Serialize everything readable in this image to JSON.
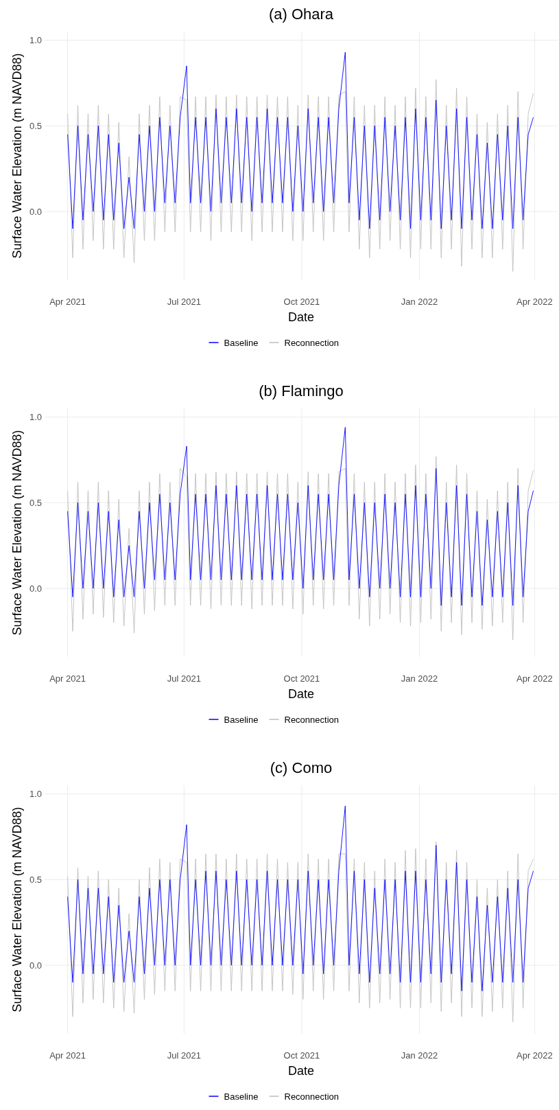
{
  "chart_data": [
    {
      "type": "line",
      "title": "(a) Ohara",
      "xlabel": "Date",
      "ylabel": "Surface Water Elevation (m NAVD88)",
      "legend": "bottom",
      "grid": true,
      "xlim": [
        "2021-03-14",
        "2022-04-19"
      ],
      "ylim": [
        -0.4,
        1.05
      ],
      "xticks": [
        {
          "value": "2021-04-01",
          "label": "Apr 2021"
        },
        {
          "value": "2021-07-01",
          "label": "Jul 2021"
        },
        {
          "value": "2021-10-01",
          "label": "Oct 2021"
        },
        {
          "value": "2022-01-01",
          "label": "Jan 2022"
        },
        {
          "value": "2022-04-01",
          "label": "Apr 2022"
        }
      ],
      "yticks": [
        {
          "value": 0,
          "label": "0.0"
        },
        {
          "value": 0.5,
          "label": "0.5"
        },
        {
          "value": 1,
          "label": "1.0"
        }
      ],
      "x": [
        "2021-04-01",
        "2021-04-05",
        "2021-04-09",
        "2021-04-13",
        "2021-04-17",
        "2021-04-21",
        "2021-04-25",
        "2021-04-29",
        "2021-05-03",
        "2021-05-07",
        "2021-05-11",
        "2021-05-15",
        "2021-05-19",
        "2021-05-23",
        "2021-05-27",
        "2021-05-31",
        "2021-06-04",
        "2021-06-08",
        "2021-06-12",
        "2021-06-16",
        "2021-06-20",
        "2021-06-24",
        "2021-06-28",
        "2021-07-03",
        "2021-07-06",
        "2021-07-10",
        "2021-07-14",
        "2021-07-18",
        "2021-07-22",
        "2021-07-26",
        "2021-07-30",
        "2021-08-03",
        "2021-08-07",
        "2021-08-11",
        "2021-08-15",
        "2021-08-19",
        "2021-08-23",
        "2021-08-27",
        "2021-08-31",
        "2021-09-04",
        "2021-09-08",
        "2021-09-12",
        "2021-09-16",
        "2021-09-20",
        "2021-09-24",
        "2021-09-28",
        "2021-10-02",
        "2021-10-06",
        "2021-10-10",
        "2021-10-14",
        "2021-10-18",
        "2021-10-22",
        "2021-10-26",
        "2021-10-30",
        "2021-11-04",
        "2021-11-07",
        "2021-11-11",
        "2021-11-15",
        "2021-11-19",
        "2021-11-23",
        "2021-11-27",
        "2021-12-01",
        "2021-12-05",
        "2021-12-09",
        "2021-12-13",
        "2021-12-17",
        "2021-12-21",
        "2021-12-25",
        "2021-12-29",
        "2022-01-02",
        "2022-01-06",
        "2022-01-10",
        "2022-01-14",
        "2022-01-18",
        "2022-01-22",
        "2022-01-26",
        "2022-01-30",
        "2022-02-03",
        "2022-02-07",
        "2022-02-11",
        "2022-02-15",
        "2022-02-19",
        "2022-02-23",
        "2022-02-27",
        "2022-03-03",
        "2022-03-07",
        "2022-03-11",
        "2022-03-15",
        "2022-03-19",
        "2022-03-23",
        "2022-03-27",
        "2022-03-31"
      ],
      "series": [
        {
          "name": "Baseline",
          "color": "#0000ff",
          "values": [
            0.45,
            -0.1,
            0.5,
            -0.05,
            0.45,
            0.0,
            0.5,
            -0.05,
            0.45,
            -0.05,
            0.4,
            -0.1,
            0.2,
            -0.1,
            0.45,
            0.0,
            0.5,
            0.0,
            0.55,
            0.05,
            0.5,
            0.05,
            0.55,
            0.85,
            0.05,
            0.55,
            0.05,
            0.55,
            0.0,
            0.6,
            0.05,
            0.55,
            0.05,
            0.6,
            0.05,
            0.55,
            0.0,
            0.55,
            0.05,
            0.6,
            0.05,
            0.55,
            0.05,
            0.55,
            0.0,
            0.5,
            0.0,
            0.6,
            0.05,
            0.55,
            0.0,
            0.55,
            0.05,
            0.6,
            0.93,
            0.05,
            0.55,
            -0.05,
            0.5,
            -0.1,
            0.5,
            -0.05,
            0.55,
            0.0,
            0.5,
            -0.05,
            0.55,
            -0.1,
            0.6,
            -0.05,
            0.55,
            -0.05,
            0.65,
            -0.1,
            0.5,
            -0.05,
            0.6,
            -0.1,
            0.55,
            -0.05,
            0.45,
            -0.1,
            0.4,
            -0.1,
            0.45,
            -0.05,
            0.5,
            -0.1,
            0.55,
            -0.05,
            0.45,
            0.55
          ]
        },
        {
          "name": "Reconnection",
          "color": "#bebebe",
          "values": [
            0.57,
            -0.27,
            0.62,
            -0.22,
            0.57,
            -0.17,
            0.62,
            -0.22,
            0.57,
            -0.22,
            0.52,
            -0.27,
            0.32,
            -0.3,
            0.57,
            -0.17,
            0.62,
            -0.17,
            0.67,
            -0.12,
            0.62,
            -0.12,
            0.67,
            0.65,
            -0.12,
            0.67,
            -0.12,
            0.67,
            -0.17,
            0.68,
            -0.12,
            0.67,
            -0.12,
            0.68,
            -0.12,
            0.67,
            -0.17,
            0.67,
            -0.12,
            0.68,
            -0.12,
            0.67,
            -0.12,
            0.67,
            -0.17,
            0.62,
            -0.17,
            0.68,
            -0.12,
            0.67,
            -0.17,
            0.67,
            -0.12,
            0.68,
            0.7,
            -0.12,
            0.67,
            -0.22,
            0.62,
            -0.27,
            0.62,
            -0.22,
            0.67,
            -0.17,
            0.62,
            -0.22,
            0.67,
            -0.27,
            0.72,
            -0.22,
            0.67,
            -0.22,
            0.77,
            -0.27,
            0.62,
            -0.22,
            0.72,
            -0.32,
            0.67,
            -0.22,
            0.57,
            -0.27,
            0.52,
            -0.27,
            0.57,
            -0.22,
            0.62,
            -0.35,
            0.7,
            -0.22,
            0.57,
            0.69
          ]
        }
      ]
    },
    {
      "type": "line",
      "title": "(b) Flamingo",
      "xlabel": "Date",
      "ylabel": "Surface Water Elevation (m NAVD88)",
      "legend": "bottom",
      "grid": true,
      "xlim": [
        "2021-03-14",
        "2022-04-19"
      ],
      "ylim": [
        -0.4,
        1.05
      ],
      "xticks": [
        {
          "value": "2021-04-01",
          "label": "Apr 2021"
        },
        {
          "value": "2021-07-01",
          "label": "Jul 2021"
        },
        {
          "value": "2021-10-01",
          "label": "Oct 2021"
        },
        {
          "value": "2022-01-01",
          "label": "Jan 2022"
        },
        {
          "value": "2022-04-01",
          "label": "Apr 2022"
        }
      ],
      "yticks": [
        {
          "value": 0,
          "label": "0.0"
        },
        {
          "value": 0.5,
          "label": "0.5"
        },
        {
          "value": 1,
          "label": "1.0"
        }
      ],
      "x": [
        "2021-04-01",
        "2021-04-05",
        "2021-04-09",
        "2021-04-13",
        "2021-04-17",
        "2021-04-21",
        "2021-04-25",
        "2021-04-29",
        "2021-05-03",
        "2021-05-07",
        "2021-05-11",
        "2021-05-15",
        "2021-05-19",
        "2021-05-23",
        "2021-05-27",
        "2021-05-31",
        "2021-06-04",
        "2021-06-08",
        "2021-06-12",
        "2021-06-16",
        "2021-06-20",
        "2021-06-24",
        "2021-06-28",
        "2021-07-03",
        "2021-07-06",
        "2021-07-10",
        "2021-07-14",
        "2021-07-18",
        "2021-07-22",
        "2021-07-26",
        "2021-07-30",
        "2021-08-03",
        "2021-08-07",
        "2021-08-11",
        "2021-08-15",
        "2021-08-19",
        "2021-08-23",
        "2021-08-27",
        "2021-08-31",
        "2021-09-04",
        "2021-09-08",
        "2021-09-12",
        "2021-09-16",
        "2021-09-20",
        "2021-09-24",
        "2021-09-28",
        "2021-10-02",
        "2021-10-06",
        "2021-10-10",
        "2021-10-14",
        "2021-10-18",
        "2021-10-22",
        "2021-10-26",
        "2021-10-30",
        "2021-11-04",
        "2021-11-07",
        "2021-11-11",
        "2021-11-15",
        "2021-11-19",
        "2021-11-23",
        "2021-11-27",
        "2021-12-01",
        "2021-12-05",
        "2021-12-09",
        "2021-12-13",
        "2021-12-17",
        "2021-12-21",
        "2021-12-25",
        "2021-12-29",
        "2022-01-02",
        "2022-01-06",
        "2022-01-10",
        "2022-01-14",
        "2022-01-18",
        "2022-01-22",
        "2022-01-26",
        "2022-01-30",
        "2022-02-03",
        "2022-02-07",
        "2022-02-11",
        "2022-02-15",
        "2022-02-19",
        "2022-02-23",
        "2022-02-27",
        "2022-03-03",
        "2022-03-07",
        "2022-03-11",
        "2022-03-15",
        "2022-03-19",
        "2022-03-23",
        "2022-03-27",
        "2022-03-31"
      ],
      "series": [
        {
          "name": "Baseline",
          "color": "#0000ff",
          "values": [
            0.45,
            -0.05,
            0.5,
            0.0,
            0.45,
            0.0,
            0.5,
            0.0,
            0.45,
            -0.05,
            0.4,
            -0.05,
            0.25,
            -0.05,
            0.45,
            0.0,
            0.5,
            0.05,
            0.55,
            0.05,
            0.5,
            0.05,
            0.55,
            0.83,
            0.05,
            0.55,
            0.05,
            0.55,
            0.05,
            0.6,
            0.05,
            0.55,
            0.05,
            0.6,
            0.05,
            0.55,
            0.05,
            0.55,
            0.05,
            0.6,
            0.05,
            0.55,
            0.05,
            0.55,
            0.05,
            0.5,
            0.0,
            0.6,
            0.05,
            0.55,
            0.05,
            0.55,
            0.05,
            0.6,
            0.94,
            0.05,
            0.55,
            0.0,
            0.5,
            -0.05,
            0.5,
            0.0,
            0.55,
            0.0,
            0.5,
            -0.05,
            0.55,
            -0.05,
            0.6,
            -0.05,
            0.55,
            0.0,
            0.7,
            -0.1,
            0.5,
            -0.05,
            0.6,
            -0.1,
            0.55,
            -0.05,
            0.45,
            -0.1,
            0.4,
            -0.05,
            0.45,
            -0.05,
            0.5,
            -0.1,
            0.6,
            -0.05,
            0.45,
            0.57
          ]
        },
        {
          "name": "Reconnection",
          "color": "#bebebe",
          "values": [
            0.57,
            -0.25,
            0.62,
            -0.18,
            0.57,
            -0.15,
            0.62,
            -0.17,
            0.57,
            -0.2,
            0.52,
            -0.22,
            0.35,
            -0.26,
            0.57,
            -0.15,
            0.62,
            -0.13,
            0.67,
            -0.1,
            0.62,
            -0.1,
            0.7,
            0.65,
            -0.1,
            0.67,
            -0.1,
            0.67,
            -0.12,
            0.68,
            -0.1,
            0.67,
            -0.1,
            0.68,
            -0.1,
            0.67,
            -0.12,
            0.67,
            -0.1,
            0.68,
            -0.1,
            0.67,
            -0.1,
            0.67,
            -0.12,
            0.62,
            -0.15,
            0.68,
            -0.1,
            0.67,
            -0.12,
            0.67,
            -0.1,
            0.68,
            0.7,
            -0.1,
            0.67,
            -0.18,
            0.62,
            -0.22,
            0.62,
            -0.18,
            0.67,
            -0.15,
            0.62,
            -0.2,
            0.67,
            -0.22,
            0.72,
            -0.2,
            0.67,
            -0.18,
            0.77,
            -0.25,
            0.62,
            -0.2,
            0.72,
            -0.27,
            0.67,
            -0.2,
            0.57,
            -0.24,
            0.52,
            -0.22,
            0.57,
            -0.2,
            0.62,
            -0.3,
            0.7,
            -0.2,
            0.57,
            0.69
          ]
        }
      ]
    },
    {
      "type": "line",
      "title": "(c) Como",
      "xlabel": "Date",
      "ylabel": "Surface Water Elevation (m NAVD88)",
      "legend": "bottom",
      "grid": true,
      "xlim": [
        "2021-03-14",
        "2022-04-19"
      ],
      "ylim": [
        -0.4,
        1.05
      ],
      "xticks": [
        {
          "value": "2021-04-01",
          "label": "Apr 2021"
        },
        {
          "value": "2021-07-01",
          "label": "Jul 2021"
        },
        {
          "value": "2021-10-01",
          "label": "Oct 2021"
        },
        {
          "value": "2022-01-01",
          "label": "Jan 2022"
        },
        {
          "value": "2022-04-01",
          "label": "Apr 2022"
        }
      ],
      "yticks": [
        {
          "value": 0,
          "label": "0.0"
        },
        {
          "value": 0.5,
          "label": "0.5"
        },
        {
          "value": 1,
          "label": "1.0"
        }
      ],
      "x": [
        "2021-04-01",
        "2021-04-05",
        "2021-04-09",
        "2021-04-13",
        "2021-04-17",
        "2021-04-21",
        "2021-04-25",
        "2021-04-29",
        "2021-05-03",
        "2021-05-07",
        "2021-05-11",
        "2021-05-15",
        "2021-05-19",
        "2021-05-23",
        "2021-05-27",
        "2021-05-31",
        "2021-06-04",
        "2021-06-08",
        "2021-06-12",
        "2021-06-16",
        "2021-06-20",
        "2021-06-24",
        "2021-06-28",
        "2021-07-03",
        "2021-07-06",
        "2021-07-10",
        "2021-07-14",
        "2021-07-18",
        "2021-07-22",
        "2021-07-26",
        "2021-07-30",
        "2021-08-03",
        "2021-08-07",
        "2021-08-11",
        "2021-08-15",
        "2021-08-19",
        "2021-08-23",
        "2021-08-27",
        "2021-08-31",
        "2021-09-04",
        "2021-09-08",
        "2021-09-12",
        "2021-09-16",
        "2021-09-20",
        "2021-09-24",
        "2021-09-28",
        "2021-10-02",
        "2021-10-06",
        "2021-10-10",
        "2021-10-14",
        "2021-10-18",
        "2021-10-22",
        "2021-10-26",
        "2021-10-30",
        "2021-11-04",
        "2021-11-07",
        "2021-11-11",
        "2021-11-15",
        "2021-11-19",
        "2021-11-23",
        "2021-11-27",
        "2021-12-01",
        "2021-12-05",
        "2021-12-09",
        "2021-12-13",
        "2021-12-17",
        "2021-12-21",
        "2021-12-25",
        "2021-12-29",
        "2022-01-02",
        "2022-01-06",
        "2022-01-10",
        "2022-01-14",
        "2022-01-18",
        "2022-01-22",
        "2022-01-26",
        "2022-01-30",
        "2022-02-03",
        "2022-02-07",
        "2022-02-11",
        "2022-02-15",
        "2022-02-19",
        "2022-02-23",
        "2022-02-27",
        "2022-03-03",
        "2022-03-07",
        "2022-03-11",
        "2022-03-15",
        "2022-03-19",
        "2022-03-23",
        "2022-03-27",
        "2022-03-31"
      ],
      "series": [
        {
          "name": "Baseline",
          "color": "#0000ff",
          "values": [
            0.4,
            -0.1,
            0.5,
            -0.05,
            0.45,
            -0.05,
            0.45,
            -0.05,
            0.4,
            -0.1,
            0.35,
            -0.1,
            0.2,
            -0.1,
            0.4,
            -0.05,
            0.45,
            0.0,
            0.5,
            0.0,
            0.5,
            0.0,
            0.5,
            0.82,
            0.0,
            0.5,
            0.0,
            0.55,
            0.0,
            0.55,
            0.0,
            0.5,
            0.0,
            0.55,
            0.0,
            0.5,
            0.0,
            0.5,
            0.0,
            0.55,
            0.0,
            0.5,
            0.0,
            0.5,
            0.0,
            0.5,
            -0.05,
            0.55,
            0.0,
            0.5,
            -0.05,
            0.5,
            0.0,
            0.55,
            0.93,
            0.0,
            0.55,
            -0.05,
            0.5,
            -0.1,
            0.45,
            -0.05,
            0.5,
            -0.05,
            0.5,
            -0.1,
            0.55,
            -0.1,
            0.55,
            -0.1,
            0.5,
            -0.05,
            0.7,
            -0.1,
            0.5,
            -0.05,
            0.6,
            -0.15,
            0.5,
            -0.1,
            0.4,
            -0.15,
            0.35,
            -0.1,
            0.4,
            -0.1,
            0.45,
            -0.1,
            0.5,
            -0.1,
            0.45,
            0.55
          ]
        },
        {
          "name": "Reconnection",
          "color": "#bebebe",
          "values": [
            0.52,
            -0.3,
            0.57,
            -0.22,
            0.52,
            -0.2,
            0.55,
            -0.22,
            0.5,
            -0.25,
            0.45,
            -0.27,
            0.3,
            -0.28,
            0.5,
            -0.2,
            0.57,
            -0.17,
            0.62,
            -0.15,
            0.6,
            -0.15,
            0.62,
            0.6,
            -0.15,
            0.62,
            -0.15,
            0.65,
            -0.15,
            0.65,
            -0.15,
            0.62,
            -0.15,
            0.65,
            -0.15,
            0.62,
            -0.15,
            0.62,
            -0.15,
            0.65,
            -0.15,
            0.62,
            -0.15,
            0.6,
            -0.17,
            0.6,
            -0.2,
            0.65,
            -0.15,
            0.62,
            -0.2,
            0.62,
            -0.15,
            0.65,
            0.65,
            -0.15,
            0.62,
            -0.22,
            0.6,
            -0.25,
            0.55,
            -0.22,
            0.62,
            -0.2,
            0.6,
            -0.25,
            0.67,
            -0.25,
            0.68,
            -0.25,
            0.62,
            -0.22,
            0.72,
            -0.27,
            0.6,
            -0.22,
            0.67,
            -0.3,
            0.6,
            -0.25,
            0.5,
            -0.3,
            0.45,
            -0.27,
            0.5,
            -0.25,
            0.55,
            -0.33,
            0.65,
            -0.25,
            0.55,
            0.62
          ]
        }
      ]
    }
  ]
}
